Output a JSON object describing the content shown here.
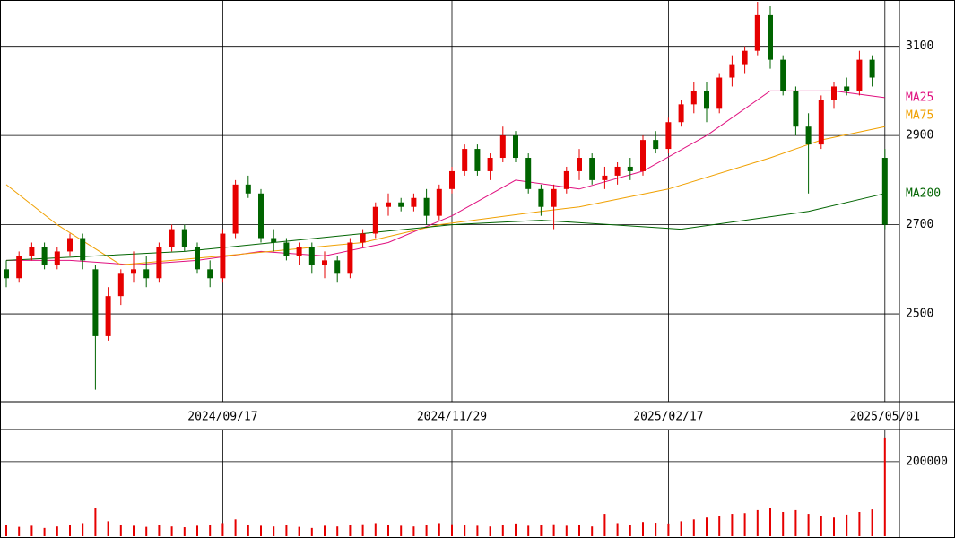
{
  "chart_data": [
    {
      "type": "candlestick",
      "categories": [
        null,
        null,
        null,
        null,
        null,
        null,
        null,
        null,
        null,
        null,
        null,
        null,
        null,
        null,
        null,
        null,
        null,
        "2024/09/17",
        null,
        null,
        null,
        null,
        null,
        null,
        null,
        null,
        null,
        null,
        null,
        null,
        null,
        null,
        null,
        null,
        null,
        "2024/11/29",
        null,
        null,
        null,
        null,
        null,
        null,
        null,
        null,
        null,
        null,
        null,
        null,
        null,
        null,
        null,
        null,
        "2025/02/17",
        null,
        null,
        null,
        null,
        null,
        null,
        null,
        null,
        null,
        null,
        null,
        null,
        null,
        null,
        null,
        null,
        "2025/05/01"
      ],
      "open": [
        2600,
        2580,
        2630,
        2650,
        2610,
        2640,
        2670,
        2600,
        2450,
        2540,
        2590,
        2600,
        2580,
        2650,
        2690,
        2650,
        2600,
        2580,
        2680,
        2790,
        2770,
        2670,
        2660,
        2630,
        2650,
        2610,
        2620,
        2590,
        2660,
        2680,
        2740,
        2750,
        2740,
        2760,
        2720,
        2780,
        2820,
        2870,
        2820,
        2850,
        2900,
        2850,
        2780,
        2740,
        2780,
        2820,
        2850,
        2800,
        2810,
        2830,
        2820,
        2890,
        2870,
        2930,
        2970,
        3000,
        2960,
        3030,
        3060,
        3090,
        3170,
        3070,
        3000,
        2920,
        2880,
        2980,
        3010,
        3000,
        3070,
        2850
      ],
      "high": [
        2620,
        2640,
        2660,
        2660,
        2650,
        2680,
        2680,
        2610,
        2560,
        2600,
        2640,
        2630,
        2660,
        2700,
        2700,
        2660,
        2620,
        2690,
        2800,
        2810,
        2780,
        2690,
        2670,
        2660,
        2660,
        2640,
        2630,
        2670,
        2690,
        2750,
        2770,
        2760,
        2770,
        2780,
        2790,
        2830,
        2880,
        2880,
        2860,
        2920,
        2910,
        2860,
        2790,
        2790,
        2830,
        2870,
        2860,
        2830,
        2840,
        2850,
        2900,
        2910,
        2940,
        2980,
        3020,
        3020,
        3040,
        3080,
        3100,
        3200,
        3190,
        3080,
        3010,
        2950,
        2990,
        3020,
        3030,
        3090,
        3080,
        2870
      ],
      "low": [
        2560,
        2570,
        2620,
        2600,
        2600,
        2630,
        2600,
        2330,
        2440,
        2520,
        2570,
        2560,
        2570,
        2640,
        2640,
        2590,
        2560,
        2570,
        2670,
        2760,
        2660,
        2640,
        2620,
        2610,
        2590,
        2580,
        2570,
        2580,
        2650,
        2670,
        2720,
        2730,
        2730,
        2700,
        2710,
        2770,
        2810,
        2810,
        2800,
        2840,
        2840,
        2770,
        2720,
        2690,
        2770,
        2800,
        2790,
        2780,
        2790,
        2800,
        2810,
        2860,
        2860,
        2920,
        2950,
        2930,
        2950,
        3010,
        3040,
        3080,
        3050,
        2990,
        2900,
        2770,
        2870,
        2960,
        2990,
        2990,
        3010,
        2690
      ],
      "close": [
        2580,
        2630,
        2650,
        2610,
        2640,
        2670,
        2620,
        2450,
        2540,
        2590,
        2600,
        2580,
        2650,
        2690,
        2650,
        2600,
        2580,
        2680,
        2790,
        2770,
        2670,
        2660,
        2630,
        2650,
        2610,
        2620,
        2590,
        2660,
        2680,
        2740,
        2750,
        2740,
        2760,
        2720,
        2780,
        2820,
        2870,
        2820,
        2850,
        2900,
        2850,
        2780,
        2740,
        2780,
        2820,
        2850,
        2800,
        2810,
        2830,
        2820,
        2890,
        2870,
        2930,
        2970,
        3000,
        2960,
        3030,
        3060,
        3090,
        3170,
        3070,
        3000,
        2920,
        2880,
        2980,
        3010,
        3000,
        3070,
        3030,
        2700
      ],
      "up_color": "#e60000",
      "down_color": "#006400",
      "series": [
        {
          "name": "MA25",
          "color": "#e0107f",
          "x": [
            0,
            5,
            10,
            15,
            20,
            25,
            30,
            35,
            40,
            45,
            50,
            55,
            60,
            65,
            69
          ],
          "values": [
            2620,
            2620,
            2610,
            2620,
            2640,
            2630,
            2660,
            2720,
            2800,
            2780,
            2820,
            2900,
            3000,
            3000,
            2985
          ]
        },
        {
          "name": "MA75",
          "color": "#f0a000",
          "x": [
            0,
            4,
            9,
            17,
            28,
            34,
            42,
            45,
            52,
            60,
            64,
            69
          ],
          "values": [
            2790,
            2700,
            2610,
            2630,
            2660,
            2700,
            2730,
            2740,
            2780,
            2850,
            2890,
            2920
          ]
        },
        {
          "name": "MA200",
          "color": "#006400",
          "x": [
            0,
            14,
            28,
            35,
            42,
            53,
            63,
            69
          ],
          "values": [
            2620,
            2640,
            2680,
            2700,
            2710,
            2690,
            2730,
            2770
          ]
        }
      ],
      "ylim": [
        2303,
        3204
      ],
      "yticks": [
        2500,
        2700,
        2900,
        3100
      ]
    },
    {
      "type": "bar",
      "color": "#e60000",
      "values": [
        30000,
        25000,
        28000,
        22000,
        26000,
        30000,
        35000,
        75000,
        40000,
        30000,
        28000,
        25000,
        30000,
        26000,
        24000,
        28000,
        30000,
        35000,
        45000,
        30000,
        28000,
        26000,
        30000,
        25000,
        22000,
        28000,
        26000,
        30000,
        32000,
        35000,
        30000,
        28000,
        26000,
        30000,
        35000,
        32000,
        30000,
        28000,
        26000,
        30000,
        34000,
        28000,
        30000,
        32000,
        28000,
        30000,
        26000,
        60000,
        35000,
        30000,
        38000,
        36000,
        34000,
        40000,
        45000,
        50000,
        55000,
        60000,
        62000,
        70000,
        75000,
        65000,
        70000,
        60000,
        55000,
        50000,
        58000,
        65000,
        72000,
        265000
      ],
      "ylim": [
        0,
        284000
      ],
      "yticks": [
        200000
      ]
    }
  ]
}
